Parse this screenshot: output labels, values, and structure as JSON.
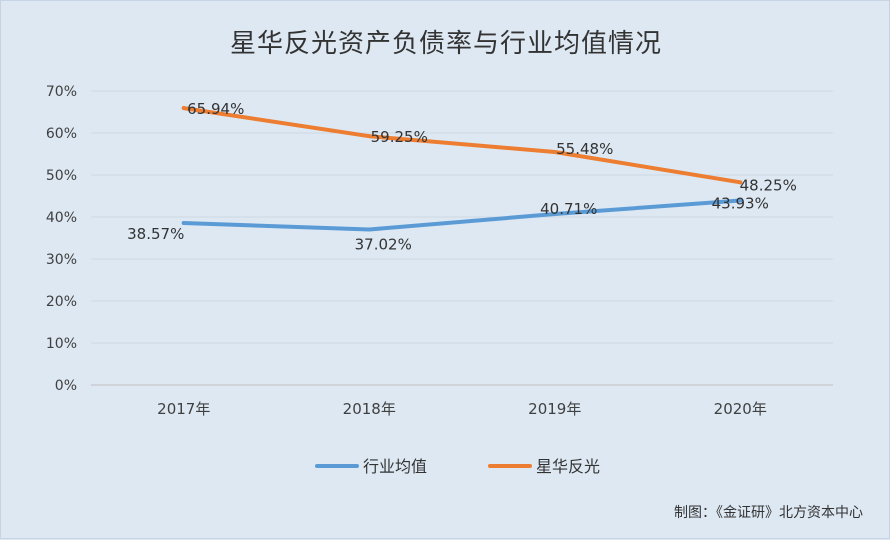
{
  "chart_data": {
    "type": "line",
    "title": "星华反光资产负债率与行业均值情况",
    "categories": [
      "2017年",
      "2018年",
      "2019年",
      "2020年"
    ],
    "yticks": [
      "0%",
      "10%",
      "20%",
      "30%",
      "40%",
      "50%",
      "60%",
      "70%"
    ],
    "ylim": [
      0,
      70
    ],
    "grid": true,
    "legend_position": "bottom",
    "series": [
      {
        "name": "行业均值",
        "color": "#5b9bd5",
        "values": [
          38.57,
          37.02,
          40.71,
          43.93
        ],
        "labels": [
          "38.57%",
          "37.02%",
          "40.71%",
          "43.93%"
        ]
      },
      {
        "name": "星华反光",
        "color": "#ed7d31",
        "values": [
          65.94,
          59.25,
          55.48,
          48.25
        ],
        "labels": [
          "65.94%",
          "59.25%",
          "55.48%",
          "48.25%"
        ]
      }
    ]
  },
  "footer": {
    "credit": "制图：《金证研》北方资本中心"
  }
}
